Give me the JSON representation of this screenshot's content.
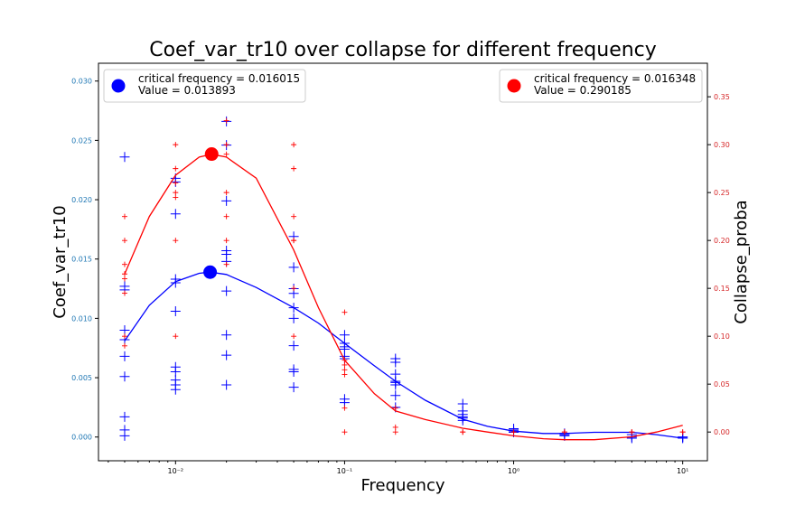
{
  "chart_data": {
    "type": "scatter",
    "title": "Coef_var_tr10 over collapse for different frequency",
    "xlabel": "Frequency",
    "ylabel": "Coef_var_tr10",
    "ylabel_right": "Collapse_proba",
    "x_scale": "log",
    "xlim": [
      0.0035,
      14
    ],
    "ylim": [
      -0.002,
      0.0315
    ],
    "ylim_right": [
      -0.03,
      0.385
    ],
    "x_ticks": [
      {
        "value": 0.01,
        "label": "10⁻²"
      },
      {
        "value": 0.1,
        "label": "10⁻¹"
      },
      {
        "value": 1,
        "label": "10⁰"
      },
      {
        "value": 10,
        "label": "10¹"
      }
    ],
    "y_ticks": [
      "0.000",
      "0.005",
      "0.010",
      "0.015",
      "0.020",
      "0.025",
      "0.030"
    ],
    "y_ticks_right": [
      "0.00",
      "0.05",
      "0.10",
      "0.15",
      "0.20",
      "0.25",
      "0.30",
      "0.35"
    ],
    "colors": {
      "left": "#1f77b4",
      "right": "#d62728",
      "blue_series": "#0000ff",
      "red_series": "#ff0000"
    },
    "series": [
      {
        "name": "Coef_var_tr10",
        "axis": "left",
        "color": "#0000ff",
        "points": [
          [
            0.005,
            0.0236
          ],
          [
            0.005,
            0.0127
          ],
          [
            0.005,
            0.0124
          ],
          [
            0.005,
            0.009
          ],
          [
            0.005,
            0.0082
          ],
          [
            0.005,
            0.0068
          ],
          [
            0.005,
            0.0051
          ],
          [
            0.005,
            0.0017
          ],
          [
            0.005,
            0.0006
          ],
          [
            0.005,
            0.0001
          ],
          [
            0.01,
            0.0218
          ],
          [
            0.01,
            0.0215
          ],
          [
            0.01,
            0.0188
          ],
          [
            0.01,
            0.0133
          ],
          [
            0.01,
            0.013
          ],
          [
            0.01,
            0.0106
          ],
          [
            0.01,
            0.0059
          ],
          [
            0.01,
            0.0055
          ],
          [
            0.01,
            0.0048
          ],
          [
            0.01,
            0.0044
          ],
          [
            0.01,
            0.004
          ],
          [
            0.02,
            0.0266
          ],
          [
            0.02,
            0.0246
          ],
          [
            0.02,
            0.0199
          ],
          [
            0.02,
            0.0157
          ],
          [
            0.02,
            0.0154
          ],
          [
            0.02,
            0.0148
          ],
          [
            0.02,
            0.0123
          ],
          [
            0.02,
            0.0086
          ],
          [
            0.02,
            0.0069
          ],
          [
            0.02,
            0.0044
          ],
          [
            0.05,
            0.0169
          ],
          [
            0.05,
            0.0143
          ],
          [
            0.05,
            0.0125
          ],
          [
            0.05,
            0.0121
          ],
          [
            0.05,
            0.0109
          ],
          [
            0.05,
            0.01
          ],
          [
            0.05,
            0.0077
          ],
          [
            0.05,
            0.0057
          ],
          [
            0.05,
            0.0055
          ],
          [
            0.05,
            0.0042
          ],
          [
            0.1,
            0.0086
          ],
          [
            0.1,
            0.0079
          ],
          [
            0.1,
            0.0076
          ],
          [
            0.1,
            0.0074
          ],
          [
            0.1,
            0.0068
          ],
          [
            0.1,
            0.0066
          ],
          [
            0.1,
            0.0032
          ],
          [
            0.1,
            0.0029
          ],
          [
            0.2,
            0.0066
          ],
          [
            0.2,
            0.0063
          ],
          [
            0.2,
            0.0053
          ],
          [
            0.2,
            0.0047
          ],
          [
            0.2,
            0.0046
          ],
          [
            0.2,
            0.0044
          ],
          [
            0.2,
            0.0035
          ],
          [
            0.2,
            0.0025
          ],
          [
            0.5,
            0.0028
          ],
          [
            0.5,
            0.0022
          ],
          [
            0.5,
            0.0019
          ],
          [
            0.5,
            0.0017
          ],
          [
            0.5,
            0.0016
          ],
          [
            0.5,
            0.0014
          ],
          [
            1,
            0.0007
          ],
          [
            1,
            0.0006
          ],
          [
            1,
            0.0005
          ],
          [
            1,
            0.0004
          ],
          [
            2,
            0.0003
          ],
          [
            2,
            0.0002
          ],
          [
            2,
            0.0001
          ],
          [
            5,
            0.0002
          ],
          [
            5,
            -0.0001
          ],
          [
            5,
            0.0
          ],
          [
            10,
            0.0
          ],
          [
            10,
            -0.0001
          ],
          [
            10,
            0.0
          ]
        ],
        "fit": [
          [
            0.005,
            0.0081
          ],
          [
            0.007,
            0.0111
          ],
          [
            0.01,
            0.0131
          ],
          [
            0.0138,
            0.0138
          ],
          [
            0.016,
            0.0139
          ],
          [
            0.02,
            0.0137
          ],
          [
            0.03,
            0.0126
          ],
          [
            0.05,
            0.0109
          ],
          [
            0.07,
            0.0096
          ],
          [
            0.1,
            0.0079
          ],
          [
            0.15,
            0.006
          ],
          [
            0.2,
            0.0047
          ],
          [
            0.3,
            0.0031
          ],
          [
            0.5,
            0.0015
          ],
          [
            0.7,
            0.0009
          ],
          [
            1,
            0.0005
          ],
          [
            1.5,
            0.0003
          ],
          [
            2,
            0.0003
          ],
          [
            3,
            0.0004
          ],
          [
            5,
            0.0004
          ],
          [
            7,
            0.0002
          ],
          [
            10,
            -0.0001
          ]
        ]
      },
      {
        "name": "Collapse_proba",
        "axis": "right",
        "color": "#ff0000",
        "points": [
          [
            0.005,
            0.225
          ],
          [
            0.005,
            0.2
          ],
          [
            0.005,
            0.175
          ],
          [
            0.005,
            0.165
          ],
          [
            0.005,
            0.16
          ],
          [
            0.005,
            0.145
          ],
          [
            0.005,
            0.1
          ],
          [
            0.005,
            0.09
          ],
          [
            0.01,
            0.3
          ],
          [
            0.01,
            0.275
          ],
          [
            0.01,
            0.26
          ],
          [
            0.01,
            0.25
          ],
          [
            0.01,
            0.245
          ],
          [
            0.01,
            0.2
          ],
          [
            0.01,
            0.1
          ],
          [
            0.02,
            0.325
          ],
          [
            0.02,
            0.3
          ],
          [
            0.02,
            0.29
          ],
          [
            0.02,
            0.25
          ],
          [
            0.02,
            0.225
          ],
          [
            0.02,
            0.2
          ],
          [
            0.02,
            0.175
          ],
          [
            0.05,
            0.3
          ],
          [
            0.05,
            0.275
          ],
          [
            0.05,
            0.225
          ],
          [
            0.05,
            0.2
          ],
          [
            0.05,
            0.2
          ],
          [
            0.05,
            0.15
          ],
          [
            0.05,
            0.1
          ],
          [
            0.1,
            0.125
          ],
          [
            0.1,
            0.075
          ],
          [
            0.1,
            0.07
          ],
          [
            0.1,
            0.065
          ],
          [
            0.1,
            0.06
          ],
          [
            0.1,
            0.025
          ],
          [
            0.1,
            0.0
          ],
          [
            0.2,
            0.025
          ],
          [
            0.2,
            0.005
          ],
          [
            0.2,
            0.0
          ],
          [
            0.5,
            0.0
          ],
          [
            0.5,
            0.0
          ],
          [
            1,
            0.0
          ],
          [
            1,
            0.0
          ],
          [
            2,
            0.0
          ],
          [
            2,
            0.0
          ],
          [
            5,
            0.0
          ],
          [
            5,
            0.0
          ],
          [
            10,
            0.0
          ],
          [
            10,
            0.0
          ]
        ],
        "fit": [
          [
            0.005,
            0.165
          ],
          [
            0.007,
            0.225
          ],
          [
            0.01,
            0.268
          ],
          [
            0.0138,
            0.287
          ],
          [
            0.0163,
            0.29
          ],
          [
            0.02,
            0.287
          ],
          [
            0.03,
            0.265
          ],
          [
            0.05,
            0.19
          ],
          [
            0.07,
            0.13
          ],
          [
            0.1,
            0.075
          ],
          [
            0.15,
            0.04
          ],
          [
            0.2,
            0.022
          ],
          [
            0.3,
            0.013
          ],
          [
            0.5,
            0.004
          ],
          [
            0.7,
            0.0
          ],
          [
            1,
            -0.004
          ],
          [
            1.5,
            -0.007
          ],
          [
            2,
            -0.008
          ],
          [
            3,
            -0.008
          ],
          [
            5,
            -0.005
          ],
          [
            7,
            0.0
          ],
          [
            10,
            0.007
          ]
        ]
      }
    ],
    "highlights": [
      {
        "axis": "left",
        "x": 0.016015,
        "y": 0.013893,
        "color": "#0000ff"
      },
      {
        "axis": "right",
        "x": 0.016348,
        "y": 0.290185,
        "color": "#ff0000"
      }
    ],
    "legend_left": {
      "line1": "critical frequency = 0.016015",
      "line2": "Value = 0.013893",
      "position": "top-left"
    },
    "legend_right": {
      "line1": "critical frequency = 0.016348",
      "line2": "Value = 0.290185",
      "position": "top-right"
    }
  }
}
